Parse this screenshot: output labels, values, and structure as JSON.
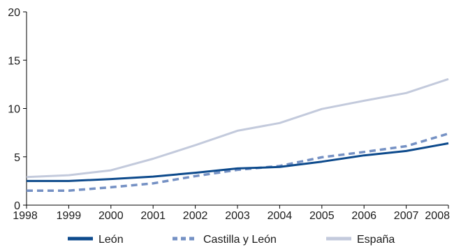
{
  "chart_data": {
    "type": "line",
    "title": "",
    "xlabel": "",
    "ylabel": "",
    "x": [
      "1998",
      "1999",
      "2000",
      "2001",
      "2002",
      "2003",
      "2004",
      "2005",
      "2006",
      "2007",
      "2008"
    ],
    "ylim": [
      0,
      20
    ],
    "yticks": [
      "0",
      "5",
      "10",
      "15",
      "20"
    ],
    "grid": false,
    "legend_position": "bottom",
    "series": [
      {
        "name": "León",
        "color": "#0d4a8c",
        "style": "solid",
        "values": [
          2.5,
          2.5,
          2.7,
          2.95,
          3.35,
          3.8,
          3.95,
          4.5,
          5.15,
          5.6,
          6.4
        ]
      },
      {
        "name": "Castilla y León",
        "color": "#7591c4",
        "style": "dashed",
        "values": [
          1.5,
          1.5,
          1.85,
          2.25,
          3.0,
          3.65,
          4.05,
          4.95,
          5.5,
          6.1,
          7.4
        ]
      },
      {
        "name": "España",
        "color": "#c3cadc",
        "style": "solid",
        "values": [
          2.9,
          3.1,
          3.6,
          4.8,
          6.2,
          7.7,
          8.5,
          9.95,
          10.8,
          11.6,
          13.05
        ]
      }
    ]
  }
}
